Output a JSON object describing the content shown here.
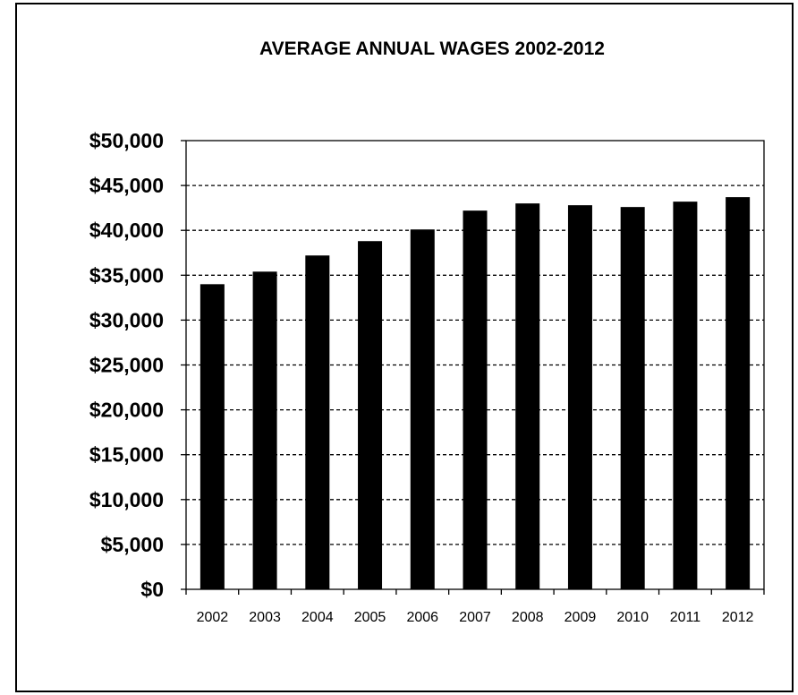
{
  "chart_data": {
    "type": "bar",
    "title": "AVERAGE ANNUAL WAGES 2002-2012",
    "xlabel": "",
    "ylabel": "",
    "categories": [
      "2002",
      "2003",
      "2004",
      "2005",
      "2006",
      "2007",
      "2008",
      "2009",
      "2010",
      "2011",
      "2012"
    ],
    "values": [
      34000,
      35400,
      37200,
      38800,
      40100,
      42200,
      43000,
      42800,
      42600,
      43200,
      43700
    ],
    "ylim": [
      0,
      50000
    ],
    "yticks": [
      0,
      5000,
      10000,
      15000,
      20000,
      25000,
      30000,
      35000,
      40000,
      45000,
      50000
    ],
    "ytick_labels": [
      "$0",
      "$5,000",
      "$10,000",
      "$15,000",
      "$20,000",
      "$25,000",
      "$30,000",
      "$35,000",
      "$40,000",
      "$45,000",
      "$50,000"
    ],
    "grid": true,
    "grid_style": "dashed",
    "legend": "none",
    "bar_color": "#000000"
  }
}
